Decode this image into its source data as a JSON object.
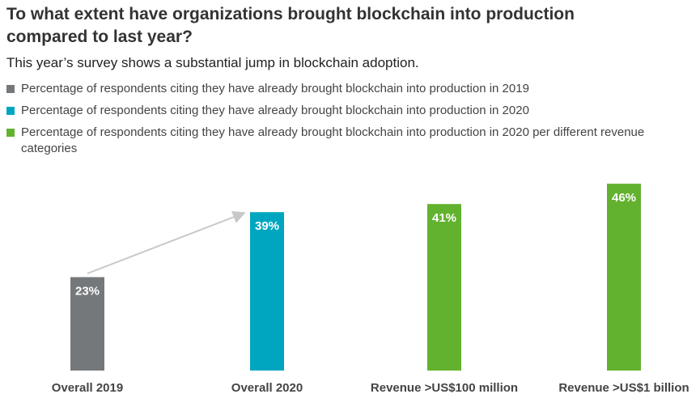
{
  "chart_data": {
    "type": "bar",
    "title": "To what extent have organizations brought blockchain into production compared to last year?",
    "subtitle": "This year’s survey shows a substantial jump in blockchain adoption.",
    "legend": [
      {
        "name": "Percentage of respondents citing they have already brought blockchain into production in 2019",
        "color": "#75787b"
      },
      {
        "name": "Percentage of respondents citing they have already brought blockchain into production in 2020",
        "color": "#00a6c0"
      },
      {
        "name": "Percentage of respondents citing they have already brought blockchain into production in 2020 per different revenue categories",
        "color": "#62b22f"
      }
    ],
    "categories": [
      "Overall 2019",
      "Overall 2020",
      "Revenue >US$100 million",
      "Revenue >US$1 billion"
    ],
    "values": [
      23,
      39,
      41,
      46
    ],
    "value_labels": [
      "23%",
      "39%",
      "41%",
      "46%"
    ],
    "colors": [
      "#75787b",
      "#00a6c0",
      "#62b22f",
      "#62b22f"
    ]
  }
}
